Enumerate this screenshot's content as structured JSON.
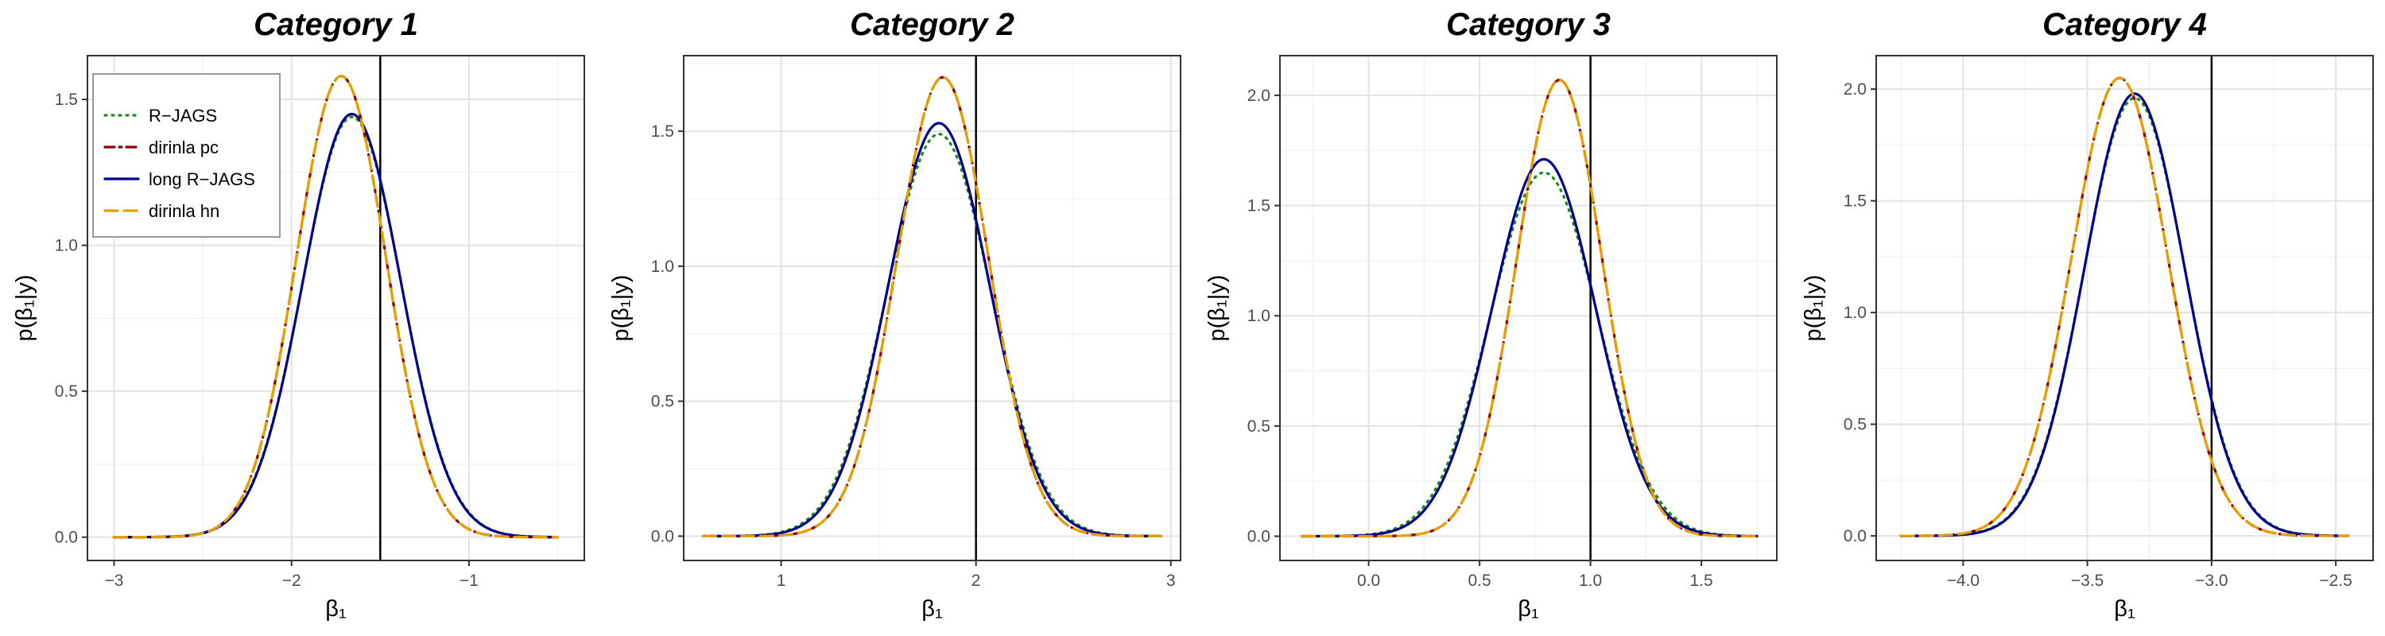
{
  "chart_data": [
    {
      "type": "line",
      "title": "Category 1",
      "xlabel": "β₁",
      "ylabel": "p(β₁|y)",
      "xlim": [
        -3.15,
        -0.35
      ],
      "ylim": [
        -0.08,
        1.65
      ],
      "x_ticks": [
        -3,
        -2,
        -1
      ],
      "x_tick_labels": [
        "−3",
        "−2",
        "−1"
      ],
      "y_ticks": [
        0,
        0.5,
        1,
        1.5
      ],
      "y_tick_labels": [
        "0.0",
        "0.5",
        "1.0",
        "1.5"
      ],
      "x_range": [
        -3.0,
        -0.5
      ],
      "true_value": -1.5,
      "grid": true,
      "legend": true,
      "series": [
        {
          "name": "R−JAGS",
          "color": "#1b8a1b",
          "dash": "dotted",
          "mean": -1.66,
          "peak": 1.44
        },
        {
          "name": "dirinla pc",
          "color": "#8b0000",
          "dash": "dashdot",
          "mean": -1.72,
          "peak": 1.58
        },
        {
          "name": "long R−JAGS",
          "color": "#00008b",
          "dash": "solid",
          "mean": -1.66,
          "peak": 1.45
        },
        {
          "name": "dirinla hn",
          "color": "#e69f00",
          "dash": "dashed",
          "mean": -1.72,
          "peak": 1.58
        }
      ]
    },
    {
      "type": "line",
      "title": "Category 2",
      "xlabel": "β₁",
      "ylabel": "p(β₁|y)",
      "xlim": [
        0.5,
        3.05
      ],
      "ylim": [
        -0.09,
        1.78
      ],
      "x_ticks": [
        1,
        2,
        3
      ],
      "x_tick_labels": [
        "1",
        "2",
        "3"
      ],
      "y_ticks": [
        0,
        0.5,
        1,
        1.5
      ],
      "y_tick_labels": [
        "0.0",
        "0.5",
        "1.0",
        "1.5"
      ],
      "x_range": [
        0.6,
        2.95
      ],
      "true_value": 2.0,
      "grid": true,
      "legend": false,
      "series": [
        {
          "name": "R−JAGS",
          "color": "#1b8a1b",
          "dash": "dotted",
          "mean": 1.81,
          "peak": 1.49
        },
        {
          "name": "dirinla pc",
          "color": "#8b0000",
          "dash": "dashdot",
          "mean": 1.83,
          "peak": 1.7
        },
        {
          "name": "long R−JAGS",
          "color": "#00008b",
          "dash": "solid",
          "mean": 1.81,
          "peak": 1.53
        },
        {
          "name": "dirinla hn",
          "color": "#e69f00",
          "dash": "dashed",
          "mean": 1.83,
          "peak": 1.7
        }
      ]
    },
    {
      "type": "line",
      "title": "Category 3",
      "xlabel": "β₁",
      "ylabel": "p(β₁|y)",
      "xlim": [
        -0.4,
        1.84
      ],
      "ylim": [
        -0.11,
        2.18
      ],
      "x_ticks": [
        0,
        0.5,
        1,
        1.5
      ],
      "x_tick_labels": [
        "0.0",
        "0.5",
        "1.0",
        "1.5"
      ],
      "y_ticks": [
        0,
        0.5,
        1,
        1.5,
        2
      ],
      "y_tick_labels": [
        "0.0",
        "0.5",
        "1.0",
        "1.5",
        "2.0"
      ],
      "x_range": [
        -0.3,
        1.75
      ],
      "true_value": 1.0,
      "grid": true,
      "legend": false,
      "series": [
        {
          "name": "R−JAGS",
          "color": "#1b8a1b",
          "dash": "dotted",
          "mean": 0.79,
          "peak": 1.65
        },
        {
          "name": "dirinla pc",
          "color": "#8b0000",
          "dash": "dashdot",
          "mean": 0.86,
          "peak": 2.07
        },
        {
          "name": "long R−JAGS",
          "color": "#00008b",
          "dash": "solid",
          "mean": 0.79,
          "peak": 1.71
        },
        {
          "name": "dirinla hn",
          "color": "#e69f00",
          "dash": "dashed",
          "mean": 0.86,
          "peak": 2.07
        }
      ]
    },
    {
      "type": "line",
      "title": "Category 4",
      "xlabel": "β₁",
      "ylabel": "p(β₁|y)",
      "xlim": [
        -4.35,
        -2.35
      ],
      "ylim": [
        -0.11,
        2.15
      ],
      "x_ticks": [
        -4,
        -3.5,
        -3,
        -2.5
      ],
      "x_tick_labels": [
        "−4.0",
        "−3.5",
        "−3.0",
        "−2.5"
      ],
      "y_ticks": [
        0,
        0.5,
        1,
        1.5,
        2
      ],
      "y_tick_labels": [
        "0.0",
        "0.5",
        "1.0",
        "1.5",
        "2.0"
      ],
      "x_range": [
        -4.25,
        -2.45
      ],
      "true_value": -3.0,
      "grid": true,
      "legend": false,
      "series": [
        {
          "name": "R−JAGS",
          "color": "#1b8a1b",
          "dash": "dotted",
          "mean": -3.31,
          "peak": 1.96
        },
        {
          "name": "dirinla pc",
          "color": "#8b0000",
          "dash": "dashdot",
          "mean": -3.37,
          "peak": 2.05
        },
        {
          "name": "long R−JAGS",
          "color": "#00008b",
          "dash": "solid",
          "mean": -3.31,
          "peak": 1.98
        },
        {
          "name": "dirinla hn",
          "color": "#e69f00",
          "dash": "dashed",
          "mean": -3.37,
          "peak": 2.05
        }
      ]
    }
  ]
}
